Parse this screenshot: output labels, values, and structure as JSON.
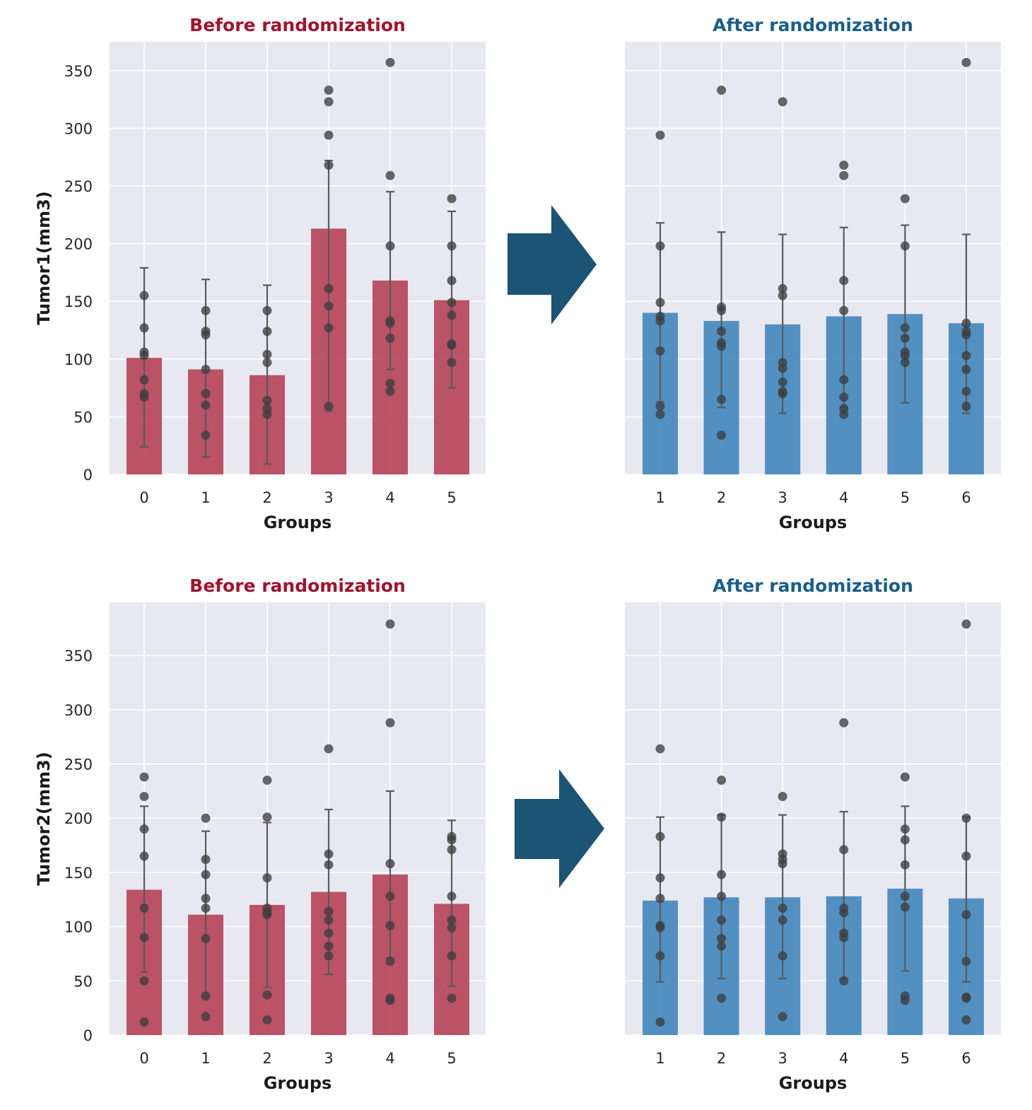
{
  "colors": {
    "before_bar": "#b84a5e",
    "after_bar": "#4a8bbf",
    "before_title": "#a3122b",
    "after_title": "#1a5e8c",
    "arrow": "#1b5474",
    "plot_bg": "#e8e8f0",
    "grid": "#ffffff",
    "point": "#3d3d3d",
    "errorbar": "#5a5a5a"
  },
  "chart_data": [
    {
      "id": "tumor1-before",
      "type": "bar",
      "title": "Before randomization",
      "xlabel": "Groups",
      "ylabel": "Tumor1(mm3)",
      "ylim": [
        0,
        375
      ],
      "yticks": [
        0,
        50,
        100,
        150,
        200,
        250,
        300,
        350
      ],
      "categories": [
        "0",
        "1",
        "2",
        "3",
        "4",
        "5"
      ],
      "values": [
        101,
        91,
        86,
        213,
        168,
        151
      ],
      "error_low": [
        24,
        15,
        9,
        55,
        91,
        75
      ],
      "error_high": [
        179,
        169,
        164,
        272,
        245,
        228
      ],
      "points": [
        [
          155,
          127,
          106,
          103,
          82,
          70,
          67
        ],
        [
          142,
          124,
          121,
          91,
          70,
          60,
          34
        ],
        [
          142,
          124,
          104,
          97,
          64,
          57,
          52
        ],
        [
          333,
          323,
          294,
          268,
          161,
          146,
          127,
          59
        ],
        [
          357,
          259,
          198,
          133,
          131,
          118,
          79,
          72
        ],
        [
          239,
          198,
          168,
          149,
          138,
          113,
          112,
          97
        ]
      ]
    },
    {
      "id": "tumor1-after",
      "type": "bar",
      "title": "After randomization",
      "xlabel": "Groups",
      "ylabel": "",
      "ylim": [
        0,
        375
      ],
      "yticks": [
        0,
        50,
        100,
        150,
        200,
        250,
        300,
        350
      ],
      "categories": [
        "1",
        "2",
        "3",
        "4",
        "5",
        "6"
      ],
      "values": [
        140,
        133,
        130,
        137,
        139,
        131
      ],
      "error_low": [
        63,
        58,
        53,
        58,
        62,
        53
      ],
      "error_high": [
        218,
        210,
        208,
        214,
        216,
        208
      ],
      "points": [
        [
          294,
          198,
          149,
          137,
          133,
          107,
          59,
          52
        ],
        [
          333,
          145,
          142,
          124,
          114,
          111,
          65,
          34
        ],
        [
          323,
          161,
          155,
          97,
          92,
          80,
          72,
          70
        ],
        [
          268,
          259,
          168,
          142,
          82,
          67,
          57,
          52
        ],
        [
          239,
          198,
          127,
          118,
          106,
          103,
          97
        ],
        [
          357,
          131,
          124,
          121,
          103,
          91,
          72,
          59
        ]
      ]
    },
    {
      "id": "tumor2-before",
      "type": "bar",
      "title": "Before randomization",
      "xlabel": "Groups",
      "ylabel": "Tumor2(mm3)",
      "ylim": [
        0,
        399
      ],
      "yticks": [
        0,
        50,
        100,
        150,
        200,
        250,
        300,
        350
      ],
      "categories": [
        "0",
        "1",
        "2",
        "3",
        "4",
        "5"
      ],
      "values": [
        134,
        111,
        120,
        132,
        148,
        121
      ],
      "error_low": [
        58,
        35,
        44,
        56,
        71,
        45
      ],
      "error_high": [
        211,
        188,
        196,
        208,
        225,
        198
      ],
      "points": [
        [
          238,
          220,
          190,
          165,
          117,
          90,
          50,
          12
        ],
        [
          200,
          162,
          148,
          126,
          117,
          89,
          36,
          17
        ],
        [
          235,
          201,
          145,
          117,
          113,
          111,
          37,
          14
        ],
        [
          264,
          167,
          157,
          114,
          106,
          94,
          82,
          73
        ],
        [
          379,
          288,
          158,
          128,
          101,
          68,
          34,
          32
        ],
        [
          183,
          180,
          171,
          128,
          106,
          99,
          73,
          34
        ]
      ]
    },
    {
      "id": "tumor2-after",
      "type": "bar",
      "title": "After randomization",
      "xlabel": "Groups",
      "ylabel": "",
      "ylim": [
        0,
        399
      ],
      "yticks": [
        0,
        50,
        100,
        150,
        200,
        250,
        300,
        350
      ],
      "categories": [
        "1",
        "2",
        "3",
        "4",
        "5",
        "6"
      ],
      "values": [
        124,
        127,
        127,
        128,
        135,
        126
      ],
      "error_low": [
        49,
        52,
        52,
        52,
        59,
        49
      ],
      "error_high": [
        201,
        203,
        203,
        206,
        211,
        201
      ],
      "points": [
        [
          264,
          183,
          145,
          126,
          101,
          99,
          73,
          12
        ],
        [
          235,
          201,
          148,
          128,
          106,
          89,
          82,
          34
        ],
        [
          220,
          167,
          162,
          158,
          117,
          106,
          73,
          17
        ],
        [
          288,
          171,
          117,
          113,
          94,
          90,
          50
        ],
        [
          238,
          190,
          180,
          157,
          128,
          118,
          36,
          32
        ],
        [
          379,
          200,
          165,
          111,
          68,
          35,
          34,
          14
        ]
      ]
    }
  ]
}
